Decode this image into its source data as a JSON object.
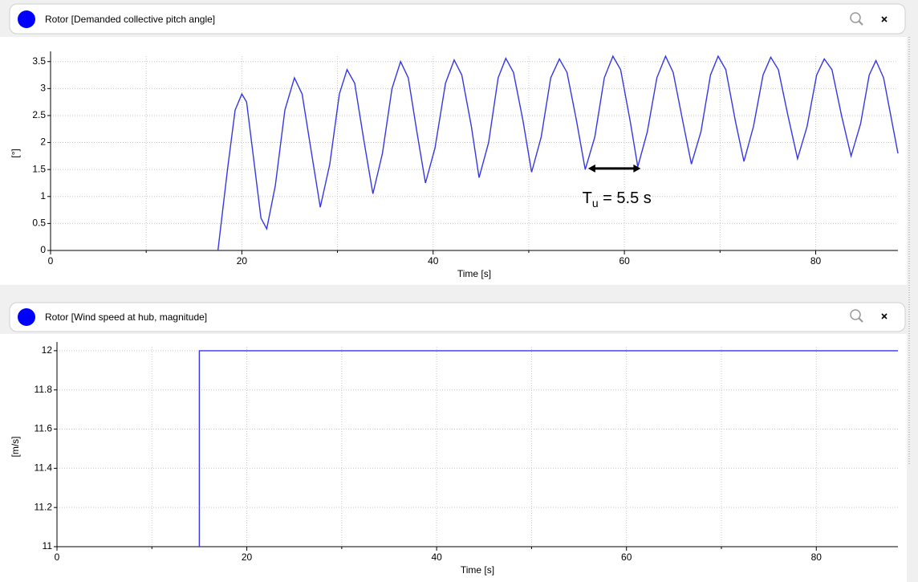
{
  "chart_data": [
    {
      "type": "line",
      "title": "Rotor [Demanded collective pitch angle]",
      "xlabel": "Time [s]",
      "ylabel": "[°]",
      "xlim": [
        0,
        88.6
      ],
      "ylim": [
        0,
        3.6
      ],
      "xticks": [
        0,
        20,
        40,
        60,
        80
      ],
      "xminorticks": [
        10,
        30,
        50,
        70
      ],
      "yticks": [
        0,
        0.5,
        1,
        1.5,
        2,
        2.5,
        3,
        3.5
      ],
      "grid": true,
      "series": [
        {
          "color": "#3636e6",
          "x": [
            17.5,
            18.5,
            19.3,
            20.0,
            20.5,
            21.3,
            22.0,
            22.6,
            23.5,
            24.5,
            25.5,
            26.3,
            27.2,
            28.2,
            29.2,
            30.2,
            31.0,
            31.8,
            32.8,
            33.7,
            34.7,
            35.7,
            36.6,
            37.4,
            38.3,
            39.2,
            40.2,
            41.3,
            42.2,
            43.0,
            44.0,
            44.8,
            45.8,
            46.8,
            47.6,
            48.4,
            49.4,
            50.3,
            51.3,
            52.3,
            53.2,
            54.0,
            55.0,
            55.9,
            56.9,
            57.9,
            58.8,
            59.6,
            60.6,
            61.4,
            62.4,
            63.4,
            64.3,
            65.1,
            66.1,
            67.0,
            68.0,
            69.0,
            69.8,
            70.6,
            71.6,
            72.5,
            73.5,
            74.5,
            75.3,
            76.1,
            77.1,
            78.1,
            79.1,
            80.1,
            80.9,
            81.7,
            82.7,
            83.7,
            84.7,
            85.6,
            86.3,
            87.1,
            88.6
          ],
          "y": [
            0,
            1.5,
            2.6,
            2.9,
            2.75,
            1.6,
            0.6,
            0.4,
            1.2,
            2.6,
            3.2,
            2.9,
            1.9,
            0.8,
            1.6,
            2.9,
            3.35,
            3.1,
            2.0,
            1.05,
            1.8,
            3.0,
            3.5,
            3.2,
            2.2,
            1.25,
            1.9,
            3.1,
            3.53,
            3.25,
            2.3,
            1.35,
            2.0,
            3.2,
            3.56,
            3.3,
            2.4,
            1.45,
            2.1,
            3.2,
            3.55,
            3.3,
            2.4,
            1.5,
            2.1,
            3.2,
            3.6,
            3.35,
            2.4,
            1.55,
            2.2,
            3.2,
            3.6,
            3.3,
            2.4,
            1.6,
            2.2,
            3.25,
            3.6,
            3.35,
            2.4,
            1.65,
            2.3,
            3.25,
            3.58,
            3.35,
            2.5,
            1.7,
            2.3,
            3.25,
            3.55,
            3.35,
            2.5,
            1.75,
            2.35,
            3.25,
            3.52,
            3.2,
            1.8
          ]
        }
      ],
      "annotation": {
        "base": "T",
        "subscript": "u",
        "rest": " = 5.5 s",
        "arrow_x": [
          56.2,
          61.7
        ],
        "arrow_y": 1.52
      }
    },
    {
      "type": "line",
      "title": "Rotor [Wind speed at hub, magnitude]",
      "xlabel": "Time [s]",
      "ylabel": "[m/s]",
      "xlim": [
        0,
        88.6
      ],
      "ylim": [
        11,
        12.02
      ],
      "xticks": [
        0,
        20,
        40,
        60,
        80
      ],
      "xminorticks": [
        10,
        30,
        50,
        70
      ],
      "yticks": [
        11,
        11.2,
        11.4,
        11.6,
        11.8,
        12
      ],
      "grid": true,
      "series": [
        {
          "color": "#3636e6",
          "x": [
            15,
            15,
            88.6
          ],
          "y": [
            11,
            12,
            12
          ]
        }
      ]
    }
  ]
}
